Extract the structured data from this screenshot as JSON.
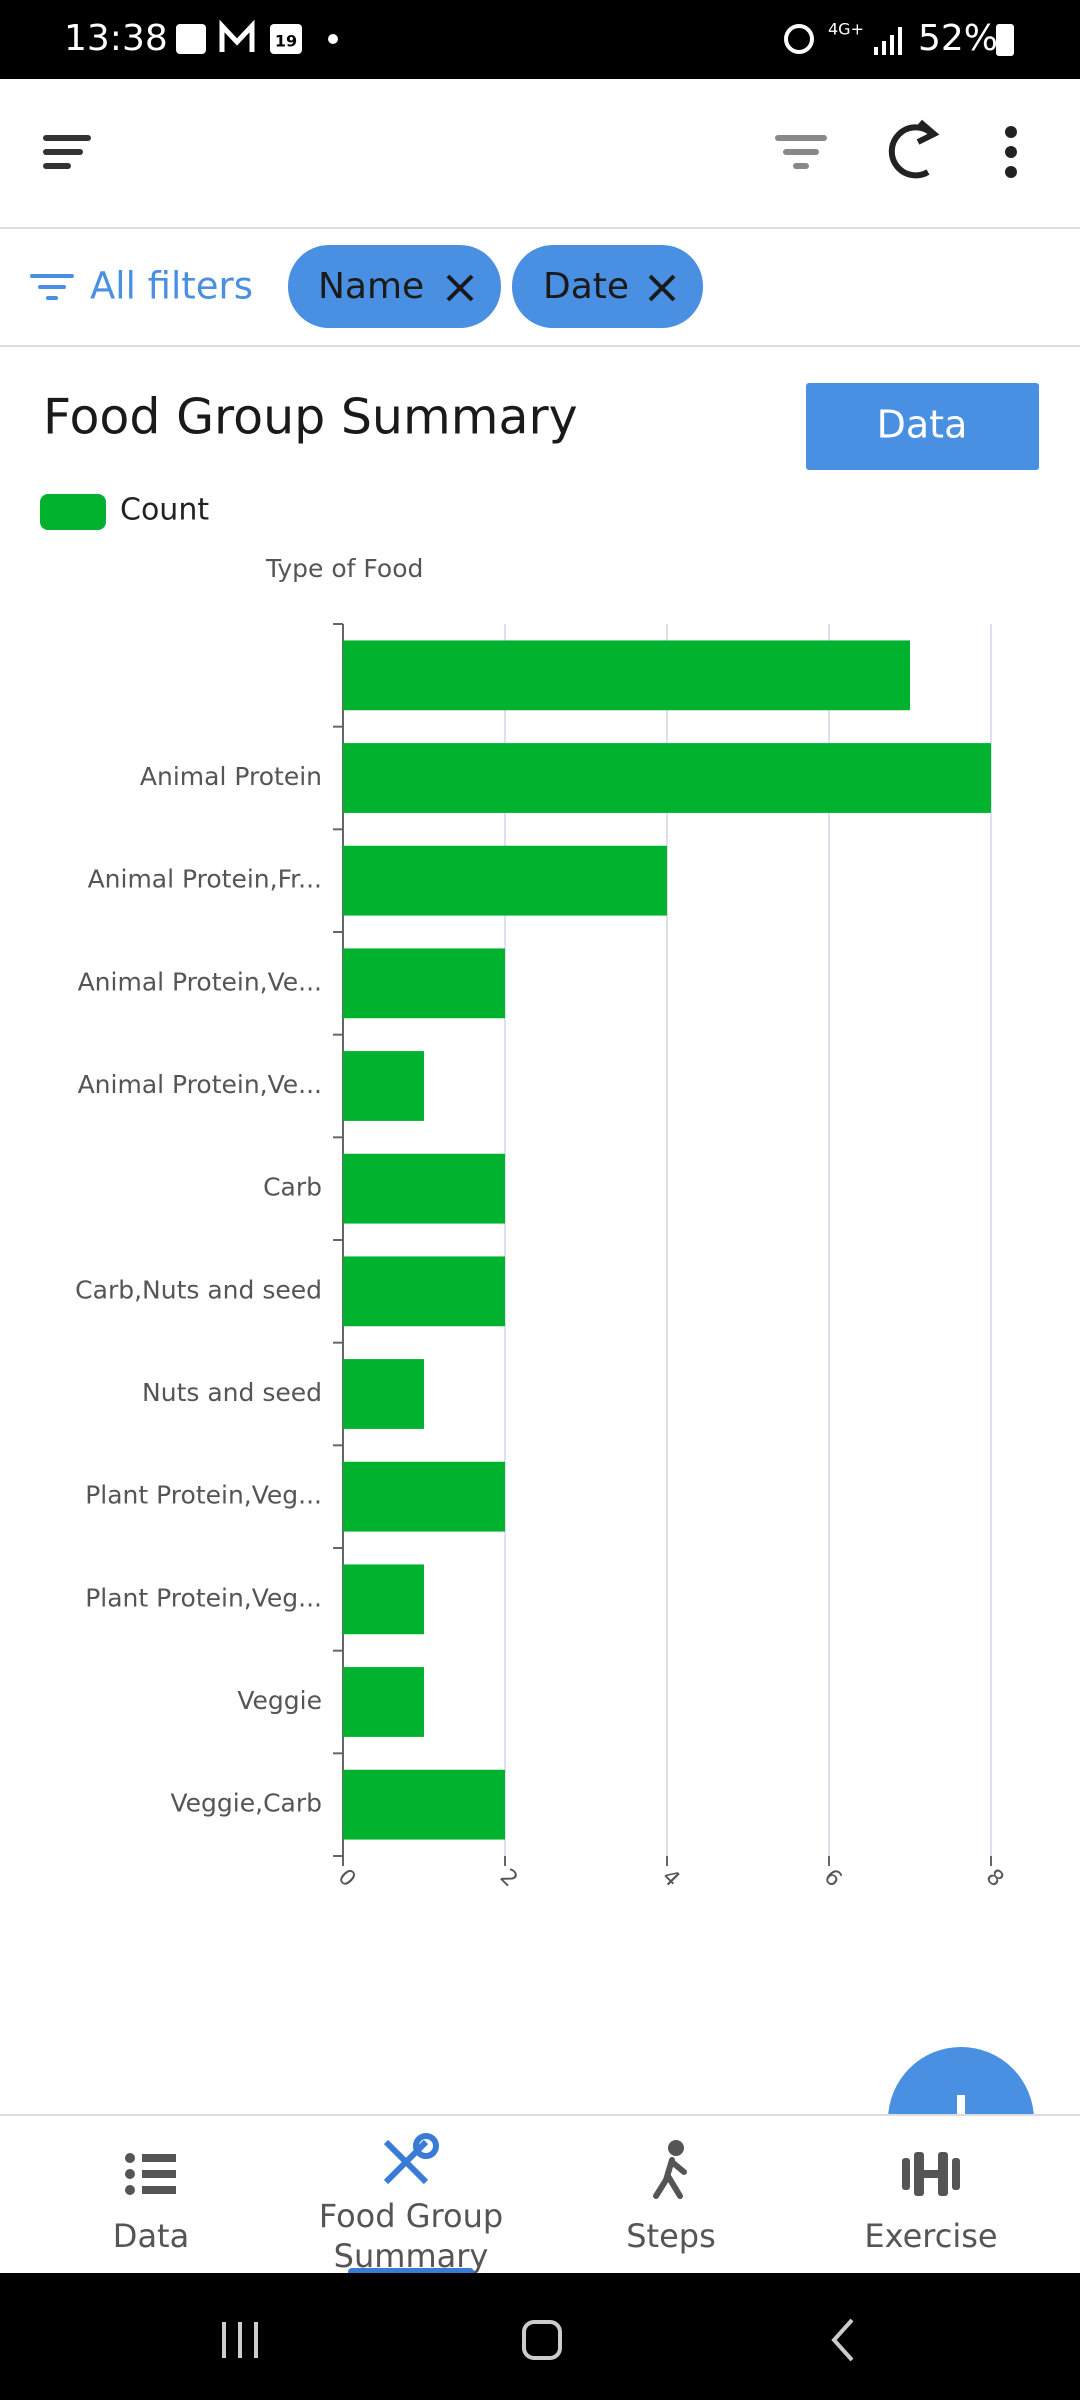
{
  "status_bar": {
    "time": "13:38",
    "calendar_day": "19",
    "network": "4G+",
    "battery": "52%"
  },
  "filters": {
    "all_filters": "All filters",
    "chips": [
      "Name",
      "Date"
    ]
  },
  "header": {
    "title": "Food Group Summary",
    "button": "Data"
  },
  "chart_data": {
    "type": "bar",
    "horizontal": true,
    "legend_title": "Count",
    "y_axis_label": "Type of Food",
    "categories": [
      null,
      "Animal Protein",
      "Animal Protein,Fr...",
      "Animal Protein,Ve...",
      "Animal Protein,Ve...",
      "Carb",
      "Carb,Nuts and seed",
      "Nuts and seed",
      "Plant Protein,Veg...",
      "Plant Protein,Veg...",
      "Veggie",
      "Veggie,Carb"
    ],
    "series": [
      {
        "name": "Count",
        "color": "#00b22d",
        "values": [
          7,
          8,
          4,
          2,
          1,
          2,
          2,
          1,
          2,
          1,
          1,
          2
        ]
      }
    ],
    "xlim": [
      0,
      8
    ],
    "xticks": [
      0,
      2,
      4,
      6,
      8
    ],
    "grid": true
  },
  "bottom_nav": {
    "items": [
      "Data",
      "Food Group\nSummary",
      "Steps",
      "Exercise"
    ],
    "active": 1
  }
}
